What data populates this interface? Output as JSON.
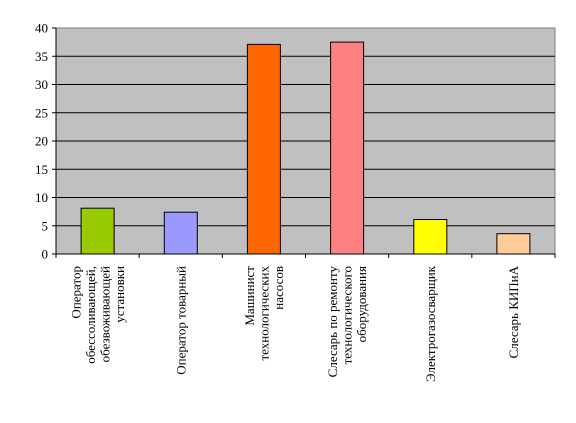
{
  "chart_data": {
    "type": "bar",
    "title": "",
    "xlabel": "",
    "ylabel": "",
    "ylim": [
      0,
      40
    ],
    "yticks": [
      "0",
      "5",
      "10",
      "15",
      "20",
      "25",
      "30",
      "35",
      "40"
    ],
    "grid": true,
    "legend": "none",
    "plot_background": "#C0C0C0",
    "categories": [
      [
        "Оператор",
        "обессоливающей,",
        "обезвоживающей",
        "установки"
      ],
      [
        "Оператор товарный"
      ],
      [
        "Машинист",
        "технологических",
        "насосов"
      ],
      [
        "Слесарь по ремонту",
        "технологического",
        "оборудования"
      ],
      [
        "Электрогазосварщик"
      ],
      [
        "Слесарь КИПиА"
      ]
    ],
    "values": [
      8.1,
      7.4,
      37.1,
      37.5,
      6.1,
      3.6
    ],
    "colors": [
      "#99CC00",
      "#9999FF",
      "#FF6600",
      "#FF8080",
      "#FFFF00",
      "#FFCC99"
    ]
  }
}
